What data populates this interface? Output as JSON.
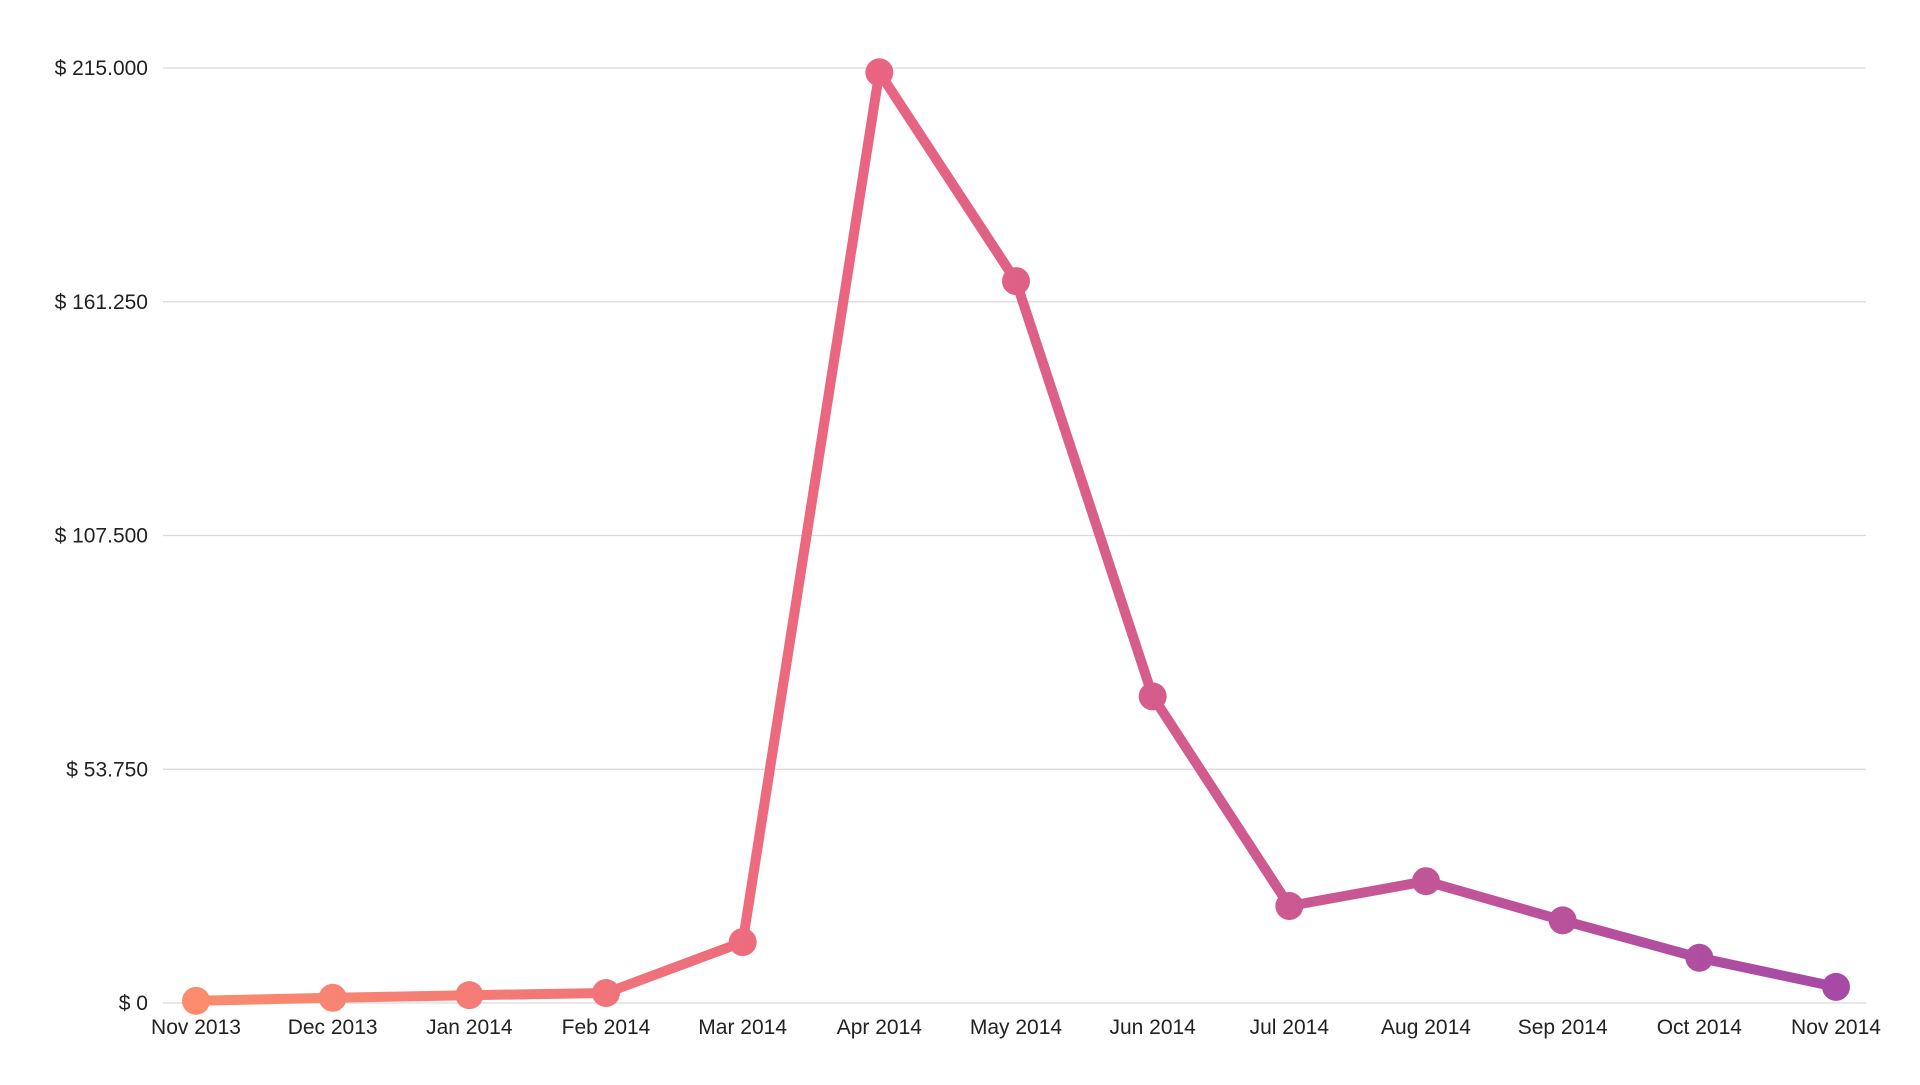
{
  "chart_data": {
    "type": "line",
    "title": "",
    "xlabel": "",
    "ylabel": "",
    "categories": [
      "Nov 2013",
      "Dec 2013",
      "Jan 2014",
      "Feb 2014",
      "Mar 2014",
      "Apr 2014",
      "May 2014",
      "Jun 2014",
      "Jul 2014",
      "Aug 2014",
      "Sep 2014",
      "Oct 2014",
      "Nov 2014"
    ],
    "series": [
      {
        "values": [
          500,
          1200,
          1800,
          2300,
          14000,
          214000,
          166000,
          70500,
          22300,
          28000,
          19000,
          10400,
          3700
        ]
      }
    ],
    "ylim": [
      0,
      215000
    ],
    "yticks": [
      0,
      53750,
      107500,
      161250,
      215000
    ],
    "ytick_labels": [
      "$ 0",
      "$ 53.750",
      "$ 107.500",
      "$ 161.250",
      "$ 215.000"
    ],
    "grid": true,
    "legend": "none",
    "colors": {
      "gradient_start": "#fb8c6e",
      "gradient_mid": "#ea6580",
      "gradient_end": "#a64aa6",
      "grid": "#d9d9d9",
      "text": "#222222"
    }
  }
}
